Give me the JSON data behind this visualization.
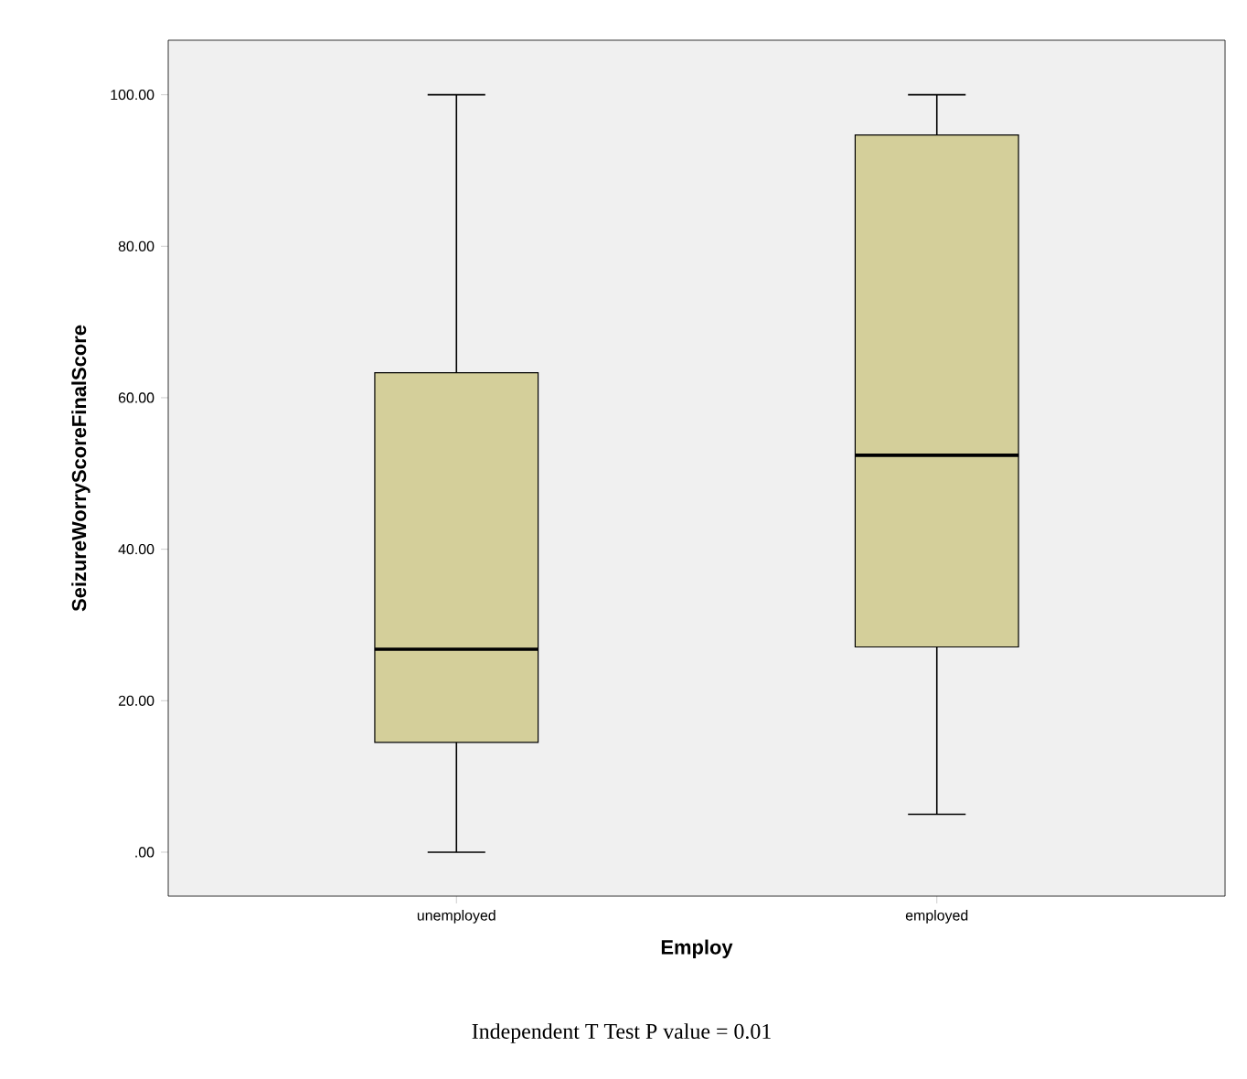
{
  "chart_data": {
    "type": "box",
    "categories": [
      "unemployed",
      "employed"
    ],
    "boxes": [
      {
        "low": 0,
        "q1": 14.5,
        "median": 26.8,
        "q3": 63.3,
        "high": 100
      },
      {
        "low": 5,
        "q1": 27.1,
        "median": 52.4,
        "q3": 94.7,
        "high": 100
      }
    ],
    "color": "#d4cf9a",
    "xlabel": "Employ",
    "ylabel": "SeizureWorryScoreFinalScore",
    "ylim": [
      -5.8,
      107.2
    ],
    "yticks": [
      {
        "value": 0,
        "label": ".00"
      },
      {
        "value": 20,
        "label": "20.00"
      },
      {
        "value": 40,
        "label": "40.00"
      },
      {
        "value": 60,
        "label": "60.00"
      },
      {
        "value": 80,
        "label": "80.00"
      },
      {
        "value": 100,
        "label": "100.00"
      }
    ],
    "grid": false,
    "annotations": [
      "Independent T Test P value = 0.01"
    ]
  }
}
